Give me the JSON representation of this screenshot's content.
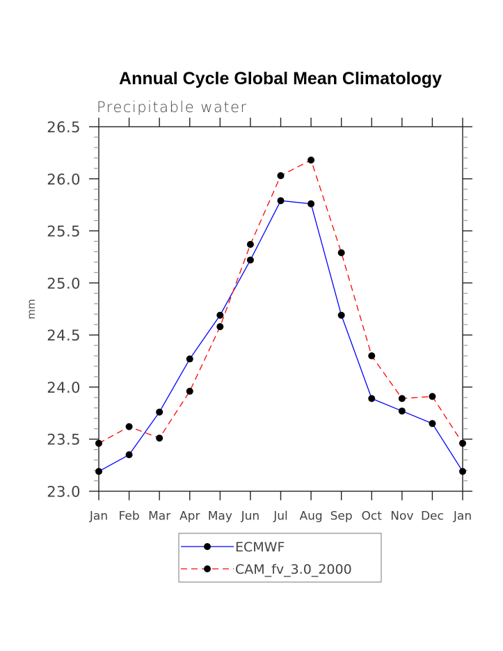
{
  "chart_data": {
    "type": "line",
    "title": "Annual Cycle Global Mean Climatology",
    "subtitle": "Precipitable water",
    "xlabel": "",
    "ylabel": "mm",
    "categories": [
      "Jan",
      "Feb",
      "Mar",
      "Apr",
      "May",
      "Jun",
      "Jul",
      "Aug",
      "Sep",
      "Oct",
      "Nov",
      "Dec",
      "Jan"
    ],
    "ylim": [
      23.0,
      26.5
    ],
    "yticks": [
      23.0,
      23.5,
      24.0,
      24.5,
      25.0,
      25.5,
      26.0,
      26.5
    ],
    "ytick_labels": [
      "23.0",
      "23.5",
      "24.0",
      "24.5",
      "25.0",
      "25.5",
      "26.0",
      "26.5"
    ],
    "yminor_step": 0.1,
    "grid": false,
    "legend_position": "bottom-center",
    "series": [
      {
        "name": "ECMWF",
        "color": "#0000ff",
        "dash": "solid",
        "marker": "filled-circle",
        "values": [
          23.19,
          23.35,
          23.76,
          24.27,
          24.69,
          25.22,
          25.79,
          25.76,
          24.69,
          23.89,
          23.77,
          23.65,
          23.19
        ]
      },
      {
        "name": "CAM_fv_3.0_2000",
        "color": "#ff0000",
        "dash": "dashed",
        "marker": "filled-circle",
        "values": [
          23.46,
          23.62,
          23.51,
          23.96,
          24.58,
          25.37,
          26.03,
          26.18,
          25.29,
          24.3,
          23.89,
          23.91,
          23.46
        ]
      }
    ]
  }
}
